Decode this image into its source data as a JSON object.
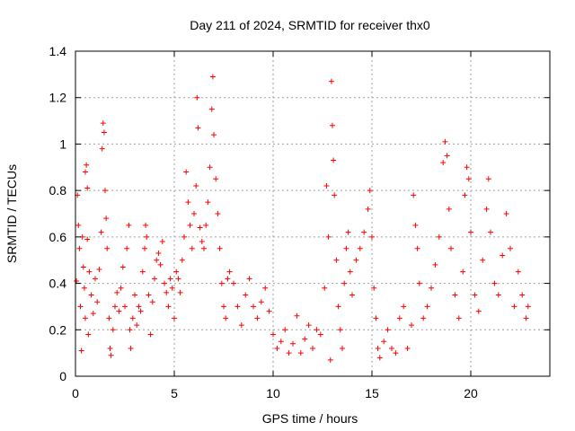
{
  "chart_data": {
    "type": "scatter",
    "title": "Day 211 of 2024, SRMTID for receiver thx0",
    "xlabel": "GPS time / hours",
    "ylabel": "SRMTID / TECUs",
    "xlim": [
      0,
      24
    ],
    "ylim": [
      0,
      1.4
    ],
    "xticks": [
      0,
      5,
      10,
      15,
      20
    ],
    "xtick_labels": [
      "0",
      "5",
      "10",
      "15",
      "20"
    ],
    "yticks": [
      0,
      0.2,
      0.4,
      0.6,
      0.8,
      1.0,
      1.2,
      1.4
    ],
    "ytick_labels": [
      "0",
      "0.2",
      "0.4",
      "0.6",
      "0.8",
      "1",
      "1.2",
      "1.4"
    ],
    "grid": true,
    "marker": "+",
    "color": "#ff0000",
    "series": [
      {
        "name": "SRMTID",
        "points": [
          [
            0.05,
            0.41
          ],
          [
            0.1,
            0.78
          ],
          [
            0.15,
            0.65
          ],
          [
            0.2,
            0.55
          ],
          [
            0.25,
            0.3
          ],
          [
            0.3,
            0.11
          ],
          [
            0.35,
            0.6
          ],
          [
            0.4,
            0.47
          ],
          [
            0.45,
            0.38
          ],
          [
            0.5,
            0.25
          ],
          [
            0.5,
            0.88
          ],
          [
            0.55,
            0.91
          ],
          [
            0.6,
            0.81
          ],
          [
            0.6,
            0.59
          ],
          [
            0.65,
            0.18
          ],
          [
            0.7,
            0.45
          ],
          [
            0.8,
            0.35
          ],
          [
            0.9,
            0.27
          ],
          [
            1.0,
            0.42
          ],
          [
            1.1,
            0.32
          ],
          [
            1.2,
            0.46
          ],
          [
            1.3,
            0.62
          ],
          [
            1.35,
            0.98
          ],
          [
            1.4,
            1.09
          ],
          [
            1.45,
            1.05
          ],
          [
            1.5,
            0.8
          ],
          [
            1.55,
            0.68
          ],
          [
            1.6,
            0.55
          ],
          [
            1.7,
            0.25
          ],
          [
            1.75,
            0.12
          ],
          [
            1.8,
            0.09
          ],
          [
            1.9,
            0.2
          ],
          [
            2.0,
            0.3
          ],
          [
            2.1,
            0.36
          ],
          [
            2.2,
            0.28
          ],
          [
            2.3,
            0.38
          ],
          [
            2.4,
            0.47
          ],
          [
            2.5,
            0.3
          ],
          [
            2.6,
            0.55
          ],
          [
            2.7,
            0.65
          ],
          [
            2.75,
            0.2
          ],
          [
            2.8,
            0.12
          ],
          [
            2.9,
            0.25
          ],
          [
            3.0,
            0.35
          ],
          [
            3.1,
            0.22
          ],
          [
            3.2,
            0.3
          ],
          [
            3.3,
            0.28
          ],
          [
            3.4,
            0.45
          ],
          [
            3.5,
            0.55
          ],
          [
            3.55,
            0.65
          ],
          [
            3.6,
            0.6
          ],
          [
            3.7,
            0.35
          ],
          [
            3.8,
            0.18
          ],
          [
            3.9,
            0.32
          ],
          [
            4.0,
            0.42
          ],
          [
            4.1,
            0.5
          ],
          [
            4.2,
            0.53
          ],
          [
            4.3,
            0.48
          ],
          [
            4.4,
            0.58
          ],
          [
            4.5,
            0.4
          ],
          [
            4.6,
            0.36
          ],
          [
            4.7,
            0.3
          ],
          [
            4.8,
            0.42
          ],
          [
            4.9,
            0.38
          ],
          [
            5.0,
            0.25
          ],
          [
            5.1,
            0.45
          ],
          [
            5.2,
            0.42
          ],
          [
            5.3,
            0.36
          ],
          [
            5.4,
            0.5
          ],
          [
            5.5,
            0.6
          ],
          [
            5.6,
            0.88
          ],
          [
            5.7,
            0.75
          ],
          [
            5.8,
            0.65
          ],
          [
            5.9,
            0.55
          ],
          [
            6.0,
            0.7
          ],
          [
            6.1,
            0.82
          ],
          [
            6.15,
            1.2
          ],
          [
            6.2,
            1.07
          ],
          [
            6.3,
            0.64
          ],
          [
            6.4,
            0.58
          ],
          [
            6.5,
            0.55
          ],
          [
            6.6,
            0.65
          ],
          [
            6.7,
            0.75
          ],
          [
            6.8,
            0.9
          ],
          [
            6.9,
            1.15
          ],
          [
            6.95,
            1.29
          ],
          [
            7.0,
            1.04
          ],
          [
            7.1,
            0.85
          ],
          [
            7.2,
            0.7
          ],
          [
            7.3,
            0.55
          ],
          [
            7.4,
            0.4
          ],
          [
            7.5,
            0.3
          ],
          [
            7.6,
            0.25
          ],
          [
            7.7,
            0.42
          ],
          [
            7.8,
            0.45
          ],
          [
            8.0,
            0.4
          ],
          [
            8.2,
            0.3
          ],
          [
            8.4,
            0.22
          ],
          [
            8.6,
            0.35
          ],
          [
            8.8,
            0.42
          ],
          [
            9.0,
            0.3
          ],
          [
            9.2,
            0.25
          ],
          [
            9.4,
            0.32
          ],
          [
            9.6,
            0.38
          ],
          [
            9.8,
            0.28
          ],
          [
            10.0,
            0.18
          ],
          [
            10.2,
            0.12
          ],
          [
            10.4,
            0.15
          ],
          [
            10.6,
            0.2
          ],
          [
            10.8,
            0.1
          ],
          [
            11.0,
            0.14
          ],
          [
            11.2,
            0.26
          ],
          [
            11.4,
            0.1
          ],
          [
            11.6,
            0.16
          ],
          [
            11.8,
            0.22
          ],
          [
            12.0,
            0.12
          ],
          [
            12.2,
            0.2
          ],
          [
            12.4,
            0.18
          ],
          [
            12.6,
            0.38
          ],
          [
            12.7,
            0.82
          ],
          [
            12.8,
            0.6
          ],
          [
            12.9,
            0.07
          ],
          [
            12.95,
            1.27
          ],
          [
            13.0,
            1.08
          ],
          [
            13.05,
            0.93
          ],
          [
            13.1,
            0.78
          ],
          [
            13.2,
            0.5
          ],
          [
            13.3,
            0.3
          ],
          [
            13.4,
            0.2
          ],
          [
            13.5,
            0.12
          ],
          [
            13.6,
            0.4
          ],
          [
            13.7,
            0.55
          ],
          [
            13.8,
            0.62
          ],
          [
            13.9,
            0.45
          ],
          [
            14.0,
            0.35
          ],
          [
            14.2,
            0.5
          ],
          [
            14.4,
            0.55
          ],
          [
            14.6,
            0.62
          ],
          [
            14.8,
            0.72
          ],
          [
            14.9,
            0.8
          ],
          [
            15.0,
            0.6
          ],
          [
            15.1,
            0.38
          ],
          [
            15.2,
            0.25
          ],
          [
            15.3,
            0.12
          ],
          [
            15.4,
            0.08
          ],
          [
            15.6,
            0.15
          ],
          [
            15.8,
            0.2
          ],
          [
            16.0,
            0.12
          ],
          [
            16.2,
            0.1
          ],
          [
            16.4,
            0.25
          ],
          [
            16.6,
            0.3
          ],
          [
            16.8,
            0.12
          ],
          [
            17.0,
            0.22
          ],
          [
            17.1,
            0.78
          ],
          [
            17.2,
            0.65
          ],
          [
            17.3,
            0.55
          ],
          [
            17.4,
            0.4
          ],
          [
            17.6,
            0.25
          ],
          [
            17.8,
            0.3
          ],
          [
            18.0,
            0.38
          ],
          [
            18.2,
            0.48
          ],
          [
            18.4,
            0.6
          ],
          [
            18.6,
            0.92
          ],
          [
            18.7,
            1.01
          ],
          [
            18.8,
            0.95
          ],
          [
            18.9,
            0.72
          ],
          [
            19.0,
            0.55
          ],
          [
            19.2,
            0.35
          ],
          [
            19.4,
            0.25
          ],
          [
            19.6,
            0.45
          ],
          [
            19.7,
            0.78
          ],
          [
            19.8,
            0.9
          ],
          [
            19.9,
            0.85
          ],
          [
            20.0,
            0.62
          ],
          [
            20.2,
            0.35
          ],
          [
            20.4,
            0.28
          ],
          [
            20.6,
            0.5
          ],
          [
            20.8,
            0.72
          ],
          [
            20.9,
            0.85
          ],
          [
            21.0,
            0.62
          ],
          [
            21.2,
            0.4
          ],
          [
            21.4,
            0.35
          ],
          [
            21.6,
            0.52
          ],
          [
            21.8,
            0.7
          ],
          [
            22.0,
            0.55
          ],
          [
            22.2,
            0.3
          ],
          [
            22.4,
            0.45
          ],
          [
            22.6,
            0.35
          ],
          [
            22.8,
            0.25
          ],
          [
            22.9,
            0.3
          ]
        ]
      }
    ]
  }
}
